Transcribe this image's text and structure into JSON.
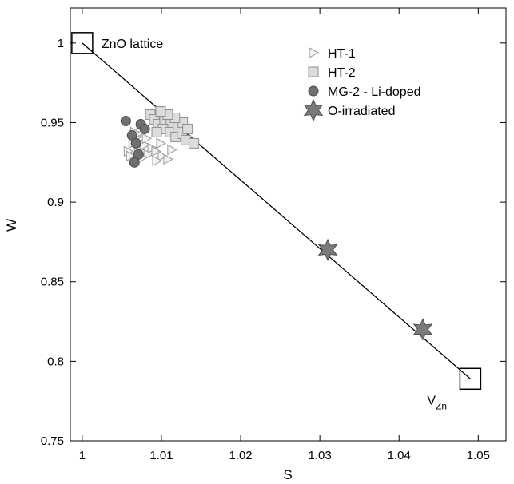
{
  "chart_data": {
    "type": "scatter",
    "xlabel": "S",
    "ylabel": "W",
    "xlim": [
      0.9985,
      1.0535
    ],
    "ylim": [
      0.75,
      1.022
    ],
    "xticks": [
      1,
      1.01,
      1.02,
      1.03,
      1.04,
      1.05
    ],
    "xtick_labels": [
      "1",
      "1.01",
      "1.02",
      "1.03",
      "1.04",
      "1.05"
    ],
    "yticks": [
      0.75,
      0.8,
      0.85,
      0.9,
      0.95,
      1
    ],
    "ytick_labels": [
      "0.75",
      "0.8",
      "0.85",
      "0.9",
      "0.95",
      "1"
    ],
    "grid": false,
    "legend_position": "top-right",
    "reference_line": {
      "from": [
        1.0,
        1.0
      ],
      "to": [
        1.049,
        0.789
      ]
    },
    "annotations": [
      {
        "text": "ZnO lattice",
        "x": 1.0,
        "y": 1.0,
        "marker": "square"
      },
      {
        "text": "V",
        "subscript": "Zn",
        "x": 1.049,
        "y": 0.789,
        "marker": "square"
      }
    ],
    "series": [
      {
        "name": "HT-1",
        "marker": "triangle-right",
        "color": "#f2f2f2",
        "stroke": "#9a9a9a",
        "points": [
          [
            1.0058,
            0.932
          ],
          [
            1.0064,
            0.937
          ],
          [
            1.0069,
            0.941
          ],
          [
            1.0074,
            0.944
          ],
          [
            1.0061,
            0.929
          ],
          [
            1.0071,
            0.933
          ],
          [
            1.0079,
            0.936
          ],
          [
            1.0088,
            0.934
          ],
          [
            1.0083,
            0.93
          ],
          [
            1.0093,
            0.932
          ],
          [
            1.0101,
            0.929
          ],
          [
            1.0099,
            0.937
          ],
          [
            1.0076,
            0.928
          ],
          [
            1.0094,
            0.926
          ],
          [
            1.0108,
            0.927
          ],
          [
            1.0113,
            0.933
          ],
          [
            1.0066,
            0.944
          ],
          [
            1.0081,
            0.94
          ]
        ]
      },
      {
        "name": "HT-2",
        "marker": "square",
        "color": "#dcdcdc",
        "stroke": "#8f8f8f",
        "points": [
          [
            1.0086,
            0.955
          ],
          [
            1.0091,
            0.952
          ],
          [
            1.0096,
            0.949
          ],
          [
            1.0104,
            0.951
          ],
          [
            1.0112,
            0.949
          ],
          [
            1.0102,
            0.946
          ],
          [
            1.0111,
            0.944
          ],
          [
            1.0121,
            0.947
          ],
          [
            1.0127,
            0.95
          ],
          [
            1.0118,
            0.941
          ],
          [
            1.0126,
            0.943
          ],
          [
            1.0133,
            0.946
          ],
          [
            1.0131,
            0.939
          ],
          [
            1.0141,
            0.937
          ],
          [
            1.0117,
            0.953
          ],
          [
            1.0094,
            0.944
          ],
          [
            1.0108,
            0.955
          ],
          [
            1.0099,
            0.957
          ]
        ]
      },
      {
        "name": "MG-2 - Li-doped",
        "marker": "circle",
        "color": "#707070",
        "stroke": "#4a4a4a",
        "points": [
          [
            1.0055,
            0.951
          ],
          [
            1.0063,
            0.942
          ],
          [
            1.0068,
            0.937
          ],
          [
            1.0074,
            0.949
          ],
          [
            1.0071,
            0.93
          ],
          [
            1.0066,
            0.925
          ],
          [
            1.0079,
            0.946
          ]
        ]
      },
      {
        "name": "O-irradiated",
        "marker": "star",
        "color": "#7a7a7a",
        "stroke": "#505050",
        "points": [
          [
            1.031,
            0.87
          ],
          [
            1.043,
            0.82
          ]
        ]
      }
    ]
  }
}
